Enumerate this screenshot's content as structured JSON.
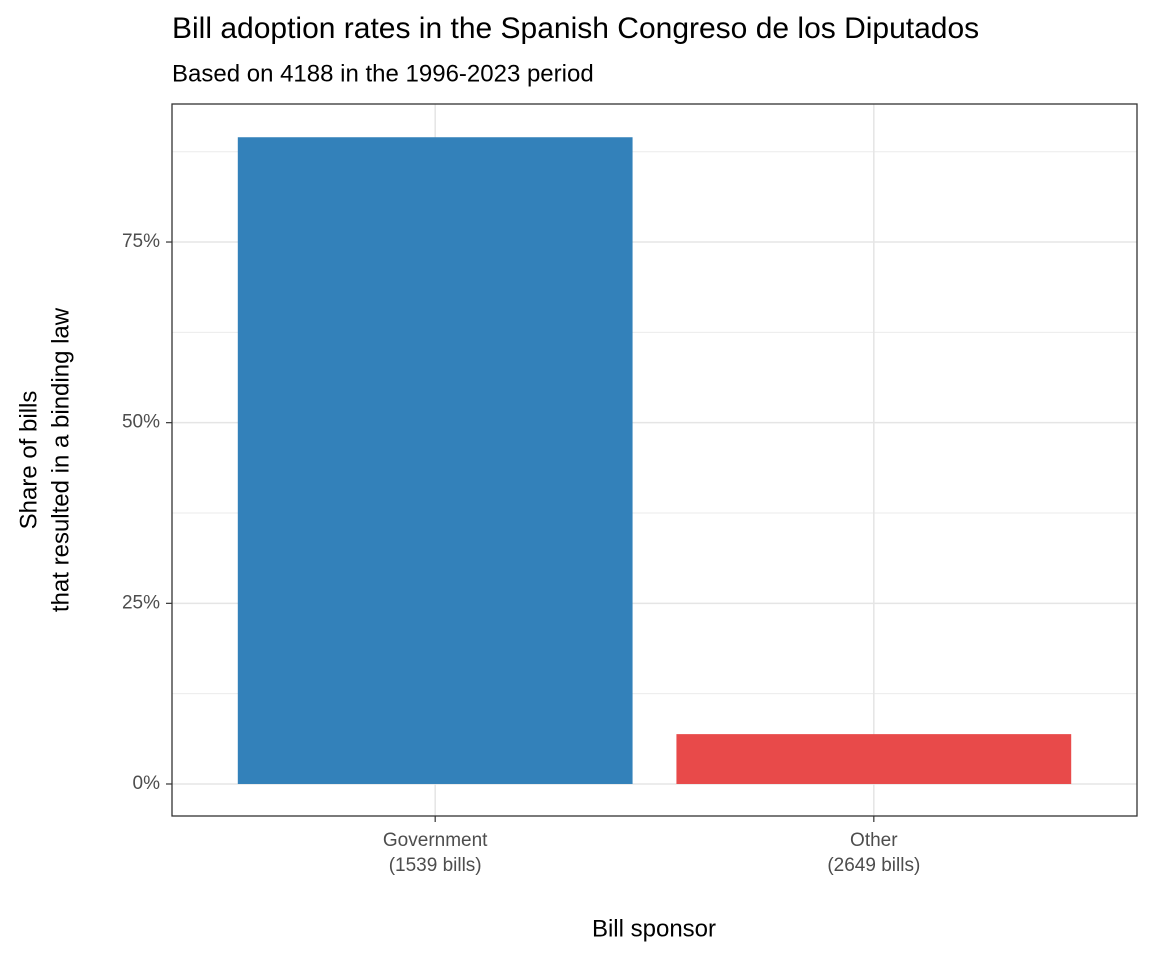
{
  "chart_data": {
    "type": "bar",
    "title": "Bill adoption rates in the Spanish Congreso de los Diputados",
    "subtitle": "Based on 4188 in the 1996-2023 period",
    "xlabel": "Bill sponsor",
    "ylabel": [
      "Share of bills",
      "that resulted in a binding law"
    ],
    "categories": [
      "Government",
      "Other"
    ],
    "category_sublabels": [
      "(1539 bills)",
      "(2649 bills)"
    ],
    "values": [
      89.5,
      6.9
    ],
    "colors": [
      "#3381ba",
      "#e84a4a"
    ],
    "ylim": [
      -4.43,
      94.1
    ],
    "yticks": [
      {
        "value": 0,
        "label": "0%"
      },
      {
        "value": 25,
        "label": "25%"
      },
      {
        "value": 50,
        "label": "50%"
      },
      {
        "value": 75,
        "label": "75%"
      }
    ],
    "minor_yticks": [
      12.5,
      37.5,
      62.5,
      87.5
    ],
    "grid": true
  }
}
